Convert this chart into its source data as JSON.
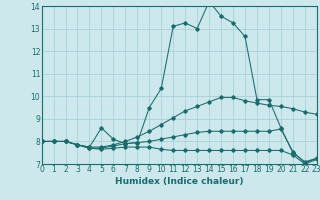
{
  "title": "",
  "xlabel": "Humidex (Indice chaleur)",
  "background_color": "#cce8ec",
  "grid_color": "#aad0d8",
  "line_color": "#1a6b6b",
  "x_values": [
    0,
    1,
    2,
    3,
    4,
    5,
    6,
    7,
    8,
    9,
    10,
    11,
    12,
    13,
    14,
    15,
    16,
    17,
    18,
    19,
    20,
    21,
    22,
    23
  ],
  "series": [
    [
      8.0,
      8.0,
      8.0,
      7.85,
      7.75,
      8.6,
      8.1,
      7.9,
      7.95,
      9.5,
      10.35,
      13.1,
      13.25,
      13.0,
      14.2,
      13.55,
      13.25,
      12.65,
      9.85,
      9.85,
      8.6,
      7.5,
      7.1,
      7.25
    ],
    [
      8.0,
      8.0,
      8.0,
      7.85,
      7.75,
      7.75,
      7.85,
      8.0,
      8.2,
      8.45,
      8.75,
      9.05,
      9.35,
      9.55,
      9.75,
      9.95,
      9.95,
      9.8,
      9.7,
      9.6,
      9.55,
      9.45,
      9.3,
      9.2
    ],
    [
      8.0,
      8.0,
      8.0,
      7.85,
      7.7,
      7.7,
      7.8,
      7.9,
      7.95,
      8.0,
      8.1,
      8.2,
      8.3,
      8.4,
      8.45,
      8.45,
      8.45,
      8.45,
      8.45,
      8.45,
      8.55,
      7.55,
      7.05,
      7.25
    ],
    [
      8.0,
      8.0,
      8.0,
      7.85,
      7.7,
      7.65,
      7.7,
      7.75,
      7.75,
      7.75,
      7.65,
      7.6,
      7.6,
      7.6,
      7.6,
      7.6,
      7.6,
      7.6,
      7.6,
      7.6,
      7.6,
      7.4,
      7.0,
      7.2
    ]
  ],
  "ylim": [
    7,
    14
  ],
  "xlim": [
    0,
    23
  ],
  "yticks": [
    7,
    8,
    9,
    10,
    11,
    12,
    13,
    14
  ],
  "xticks": [
    0,
    1,
    2,
    3,
    4,
    5,
    6,
    7,
    8,
    9,
    10,
    11,
    12,
    13,
    14,
    15,
    16,
    17,
    18,
    19,
    20,
    21,
    22,
    23
  ],
  "tick_fontsize": 5.5,
  "xlabel_fontsize": 6.5
}
